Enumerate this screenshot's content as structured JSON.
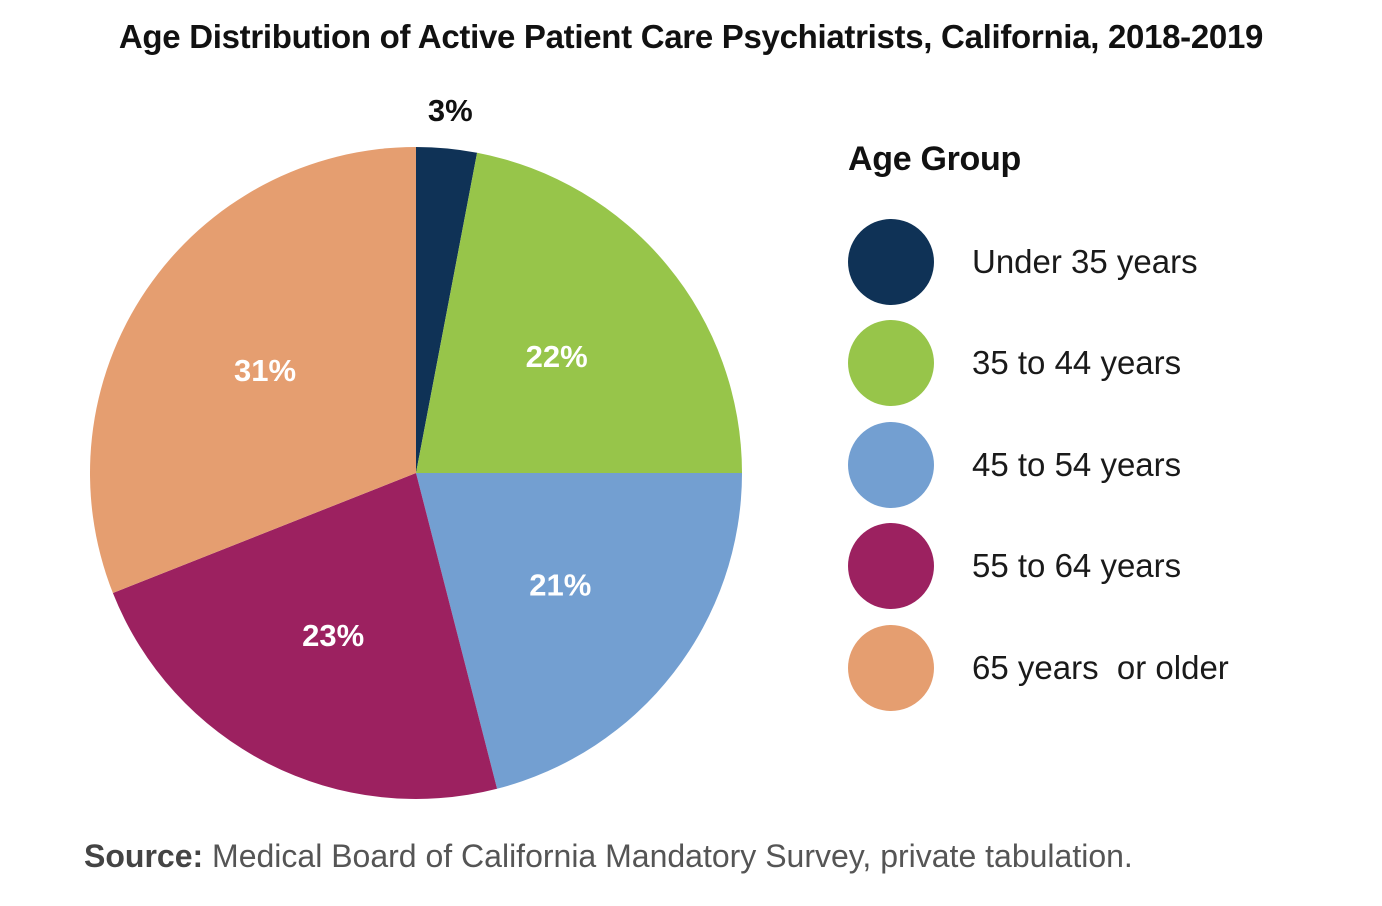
{
  "chart_data": {
    "type": "pie",
    "title": "Age Distribution of Active Patient Care Psychiatrists, California, 2018-2019",
    "slices": [
      {
        "label": "Under 35 years",
        "value": 3,
        "display": "3%",
        "color": "#0f3256",
        "label_color": "#111111",
        "label_outside": true
      },
      {
        "label": "35 to 44 years",
        "value": 22,
        "display": "22%",
        "color": "#97c54a",
        "label_color": "#ffffff",
        "label_outside": false
      },
      {
        "label": "45 to 54 years",
        "value": 21,
        "display": "21%",
        "color": "#739fd1",
        "label_color": "#ffffff",
        "label_outside": false
      },
      {
        "label": "55 to 64 years",
        "value": 23,
        "display": "23%",
        "color": "#9c2160",
        "label_color": "#ffffff",
        "label_outside": false
      },
      {
        "label": "65 years  or older",
        "value": 31,
        "display": "31%",
        "color": "#e59e70",
        "label_color": "#ffffff",
        "label_outside": false
      }
    ],
    "legend_title": "Age Group",
    "legend_position": "right"
  },
  "source": {
    "label": "Source:",
    "text": " Medical Board of California Mandatory Survey, private tabulation."
  }
}
